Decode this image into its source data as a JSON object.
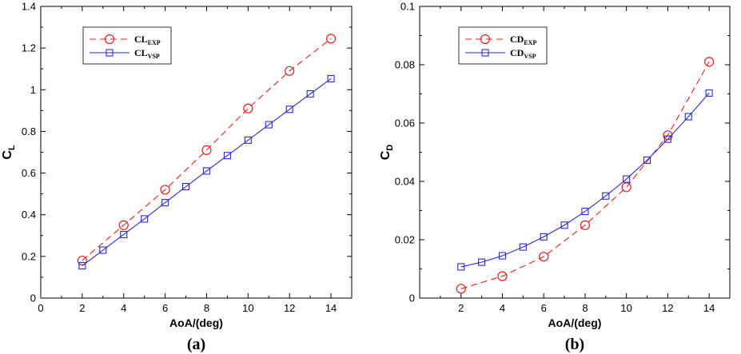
{
  "chart_data": [
    {
      "type": "line",
      "panel_label": "(a)",
      "xlabel": "AoA/(deg)",
      "ylabel_main": "C",
      "ylabel_sub": "L",
      "xlim": [
        0,
        15
      ],
      "ylim": [
        0,
        1.4
      ],
      "xticks": [
        0,
        2,
        4,
        6,
        8,
        10,
        12,
        14
      ],
      "xtick_labels": [
        "0",
        "2",
        "4",
        "6",
        "8",
        "10",
        "12",
        "14"
      ],
      "yticks": [
        0,
        0.2,
        0.4,
        0.6,
        0.8,
        1.0,
        1.2,
        1.4
      ],
      "ytick_labels": [
        "0",
        "0.2",
        "0.4",
        "0.6",
        "0.8",
        "1",
        "1.2",
        "1.4"
      ],
      "legend_position": "top-left",
      "series": [
        {
          "name_main": "CL",
          "name_sub": "EXP",
          "color": "#e0201c",
          "line_style": "dashed",
          "marker": "circle",
          "x": [
            2,
            4,
            6,
            8,
            10,
            12,
            14
          ],
          "y": [
            0.18,
            0.35,
            0.52,
            0.71,
            0.91,
            1.09,
            1.245
          ]
        },
        {
          "name_main": "CL",
          "name_sub": "VSP",
          "color": "#2b2bcf",
          "line_style": "solid",
          "marker": "square",
          "x": [
            2,
            3,
            4,
            5,
            6,
            7,
            8,
            9,
            10,
            11,
            12,
            13,
            14
          ],
          "y": [
            0.155,
            0.23,
            0.305,
            0.38,
            0.458,
            0.535,
            0.61,
            0.684,
            0.758,
            0.832,
            0.906,
            0.98,
            1.053
          ]
        }
      ]
    },
    {
      "type": "line",
      "panel_label": "(b)",
      "xlabel": "AoA/(deg)",
      "ylabel_main": "C",
      "ylabel_sub": "D",
      "xlim": [
        0,
        15
      ],
      "ylim": [
        0,
        0.1
      ],
      "xticks": [
        2,
        4,
        6,
        8,
        10,
        12,
        14
      ],
      "xtick_labels": [
        "2",
        "4",
        "6",
        "8",
        "10",
        "12",
        "14"
      ],
      "yticks": [
        0,
        0.02,
        0.04,
        0.06,
        0.08,
        0.1
      ],
      "ytick_labels": [
        "0",
        "0.02",
        "0.04",
        "0.06",
        "0.08",
        "0.1"
      ],
      "legend_position": "top-left",
      "series": [
        {
          "name_main": "CD",
          "name_sub": "EXP",
          "color": "#e0201c",
          "line_style": "dashed",
          "marker": "circle",
          "x": [
            2,
            4,
            6,
            8,
            10,
            12,
            14
          ],
          "y": [
            0.0032,
            0.0075,
            0.0142,
            0.025,
            0.038,
            0.0558,
            0.081
          ]
        },
        {
          "name_main": "CD",
          "name_sub": "VSP",
          "color": "#2b2bcf",
          "line_style": "solid",
          "marker": "square",
          "x": [
            2,
            3,
            4,
            5,
            6,
            7,
            8,
            9,
            10,
            11,
            12,
            13,
            14
          ],
          "y": [
            0.0107,
            0.0123,
            0.0145,
            0.0175,
            0.021,
            0.025,
            0.0297,
            0.035,
            0.0408,
            0.0473,
            0.0545,
            0.0622,
            0.0703
          ]
        }
      ]
    }
  ]
}
